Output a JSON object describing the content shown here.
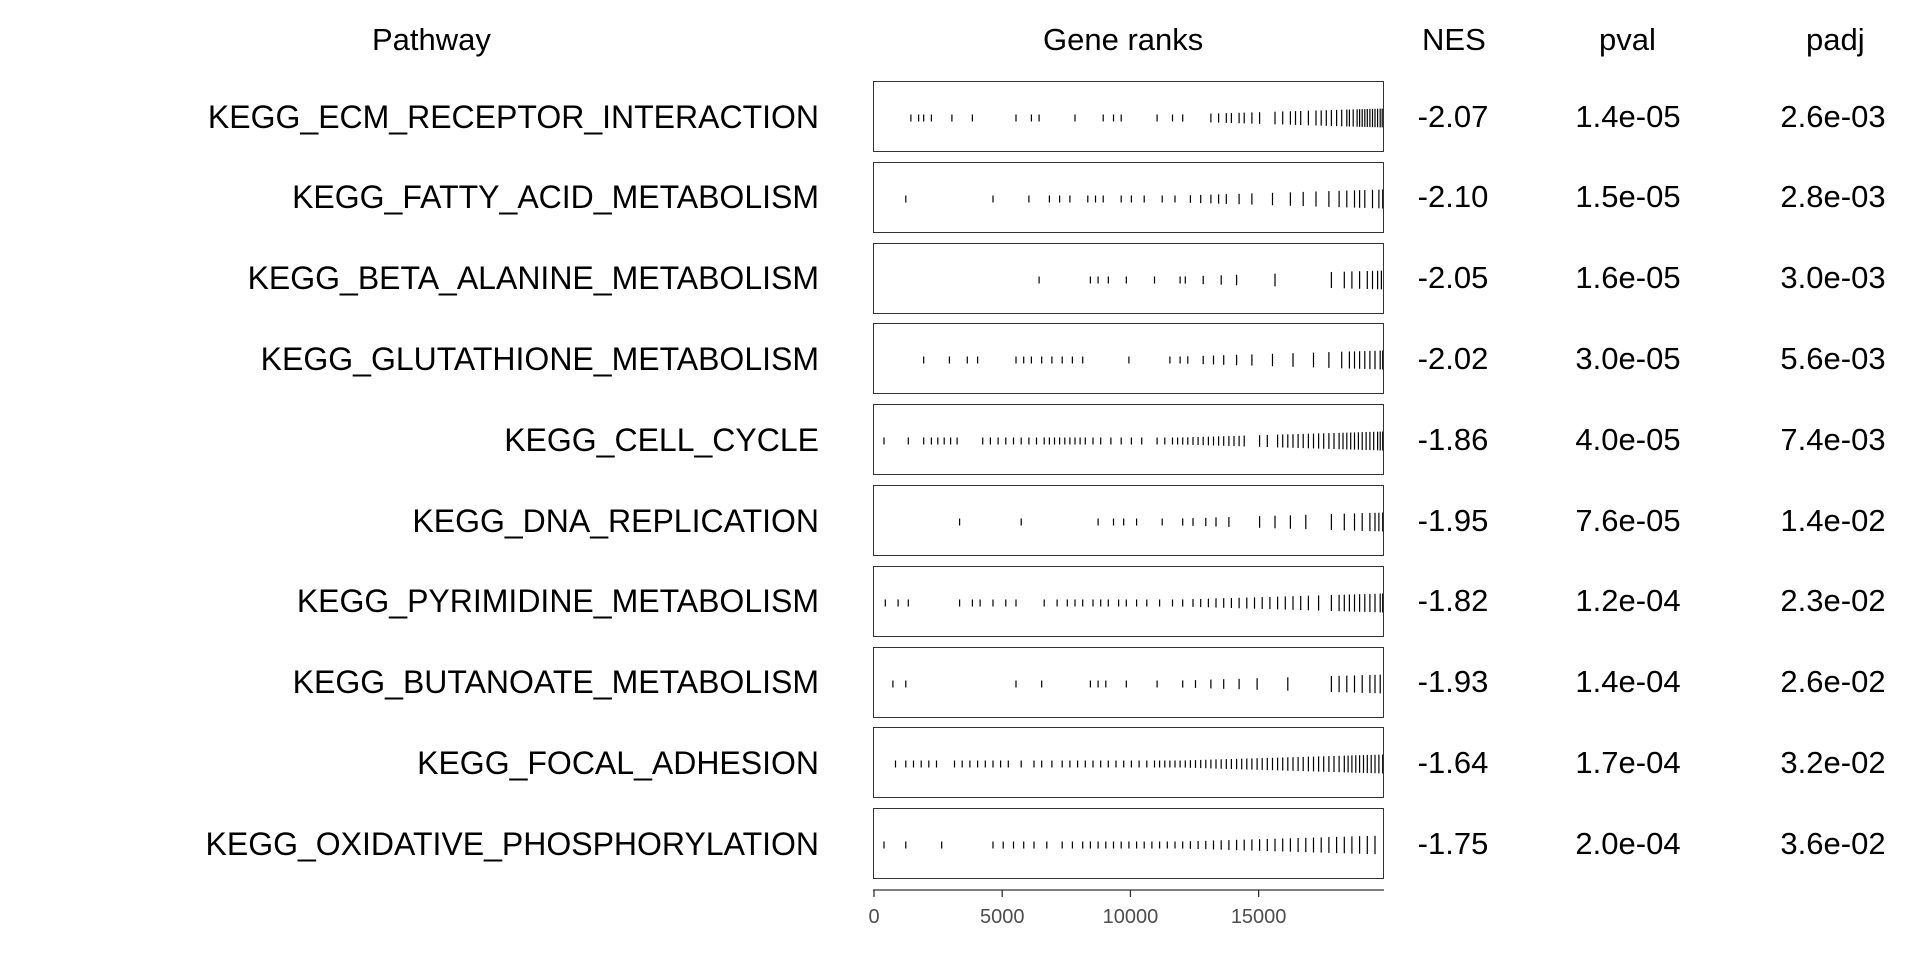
{
  "chart_data": {
    "type": "table",
    "headers": {
      "pathway": "Pathway",
      "gene_ranks": "Gene ranks",
      "nes": "NES",
      "pval": "pval",
      "padj": "padj"
    },
    "x_axis": {
      "range": [
        0,
        19850
      ],
      "ticks": [
        0,
        5000,
        10000,
        15000
      ],
      "tick_labels": [
        "0",
        "5000",
        "10000",
        "15000"
      ]
    },
    "rows": [
      {
        "pathway": "KEGG_ECM_RECEPTOR_INTERACTION",
        "nes": "-2.07",
        "pval": "1.4e-05",
        "padj": "2.6e-03",
        "ranks": [
          1400,
          1700,
          1900,
          2200,
          3000,
          3800,
          5500,
          6100,
          6400,
          7800,
          8900,
          9300,
          9600,
          11000,
          11600,
          12000,
          13100,
          13400,
          13700,
          13900,
          14200,
          14400,
          14700,
          15000,
          15600,
          15900,
          16200,
          16400,
          16600,
          16900,
          17200,
          17400,
          17600,
          17800,
          18000,
          18200,
          18400,
          18500,
          18650,
          18800,
          18900,
          19000,
          19100,
          19200,
          19300,
          19400,
          19500,
          19600,
          19700,
          19780
        ]
      },
      {
        "pathway": "KEGG_FATTY_ACID_METABOLISM",
        "nes": "-2.10",
        "pval": "1.5e-05",
        "padj": "2.8e-03",
        "ranks": [
          1200,
          4600,
          6000,
          6800,
          7200,
          7600,
          8300,
          8600,
          8900,
          9600,
          10000,
          10500,
          11200,
          11700,
          12300,
          12700,
          13100,
          13400,
          13700,
          14200,
          14700,
          15500,
          16200,
          16700,
          17200,
          17700,
          18100,
          18400,
          18700,
          18900,
          19100,
          19400,
          19650,
          19800
        ]
      },
      {
        "pathway": "KEGG_BETA_ALANINE_METABOLISM",
        "nes": "-2.05",
        "pval": "1.6e-05",
        "padj": "3.0e-03",
        "ranks": [
          6400,
          8400,
          8700,
          9100,
          9800,
          10900,
          11900,
          12100,
          12800,
          13500,
          14100,
          15600,
          17800,
          18300,
          18600,
          18900,
          19200,
          19400,
          19600,
          19750
        ]
      },
      {
        "pathway": "KEGG_GLUTATHIONE_METABOLISM",
        "nes": "-2.02",
        "pval": "3.0e-05",
        "padj": "5.6e-03",
        "ranks": [
          1900,
          2900,
          3600,
          4000,
          5500,
          5800,
          6100,
          6500,
          6900,
          7300,
          7700,
          8100,
          9900,
          11500,
          11900,
          12200,
          12800,
          13200,
          13600,
          14100,
          14700,
          15500,
          16300,
          17100,
          17700,
          18200,
          18500,
          18700,
          18900,
          19100,
          19300,
          19500,
          19700,
          19800
        ]
      },
      {
        "pathway": "KEGG_CELL_CYCLE",
        "nes": "-1.86",
        "pval": "4.0e-05",
        "padj": "7.4e-03",
        "ranks": [
          350,
          1300,
          1900,
          2200,
          2450,
          2700,
          2950,
          3200,
          4200,
          4500,
          4800,
          5100,
          5400,
          5700,
          6000,
          6300,
          6600,
          6800,
          7000,
          7200,
          7400,
          7600,
          7800,
          8000,
          8200,
          8500,
          8800,
          9200,
          9600,
          10000,
          10400,
          11000,
          11300,
          11600,
          11800,
          12000,
          12200,
          12400,
          12600,
          12800,
          13000,
          13200,
          13400,
          13600,
          13800,
          14000,
          14200,
          14400,
          15000,
          15300,
          15700,
          15900,
          16100,
          16300,
          16500,
          16700,
          16900,
          17100,
          17300,
          17500,
          17700,
          17900,
          18100,
          18250,
          18400,
          18550,
          18700,
          18850,
          19000,
          19150,
          19300,
          19450,
          19600,
          19700,
          19800
        ]
      },
      {
        "pathway": "KEGG_DNA_REPLICATION",
        "nes": "-1.95",
        "pval": "7.6e-05",
        "padj": "1.4e-02",
        "ranks": [
          3300,
          5700,
          8700,
          9300,
          9700,
          10200,
          11200,
          12000,
          12400,
          12900,
          13300,
          13800,
          15000,
          15600,
          16200,
          16800,
          17800,
          18300,
          18700,
          19000,
          19300,
          19500,
          19650,
          19800
        ]
      },
      {
        "pathway": "KEGG_PYRIMIDINE_METABOLISM",
        "nes": "-1.82",
        "pval": "1.2e-04",
        "padj": "2.3e-02",
        "ranks": [
          400,
          900,
          1300,
          3300,
          3800,
          4100,
          4600,
          5100,
          5500,
          6600,
          7100,
          7500,
          7800,
          8100,
          8500,
          8800,
          9100,
          9500,
          9800,
          10200,
          10600,
          11100,
          11600,
          12000,
          12400,
          12700,
          13000,
          13300,
          13600,
          13900,
          14200,
          14500,
          14800,
          15100,
          15400,
          15700,
          16000,
          16300,
          16600,
          16900,
          17300,
          17800,
          18100,
          18300,
          18500,
          18700,
          18900,
          19100,
          19300,
          19500,
          19700,
          19800
        ]
      },
      {
        "pathway": "KEGG_BUTANOATE_METABOLISM",
        "nes": "-1.93",
        "pval": "1.4e-04",
        "padj": "2.6e-02",
        "ranks": [
          700,
          1200,
          5500,
          6500,
          8400,
          8700,
          9000,
          9800,
          11000,
          12000,
          12500,
          13100,
          13600,
          14200,
          14900,
          16100,
          17800,
          18100,
          18400,
          18700,
          19000,
          19300,
          19500,
          19700
        ]
      },
      {
        "pathway": "KEGG_FOCAL_ADHESION",
        "nes": "-1.64",
        "pval": "1.7e-04",
        "padj": "3.2e-02",
        "ranks": [
          800,
          1200,
          1500,
          1800,
          2100,
          2400,
          3100,
          3400,
          3700,
          4000,
          4300,
          4600,
          4900,
          5200,
          5700,
          6200,
          6500,
          6900,
          7300,
          7600,
          7900,
          8200,
          8500,
          8800,
          9100,
          9400,
          9700,
          10000,
          10300,
          10600,
          10900,
          11100,
          11300,
          11500,
          11700,
          11900,
          12100,
          12300,
          12500,
          12700,
          12900,
          13100,
          13300,
          13500,
          13700,
          13900,
          14100,
          14300,
          14500,
          14700,
          14900,
          15100,
          15300,
          15500,
          15700,
          15900,
          16100,
          16300,
          16500,
          16700,
          16900,
          17100,
          17300,
          17500,
          17700,
          17900,
          18100,
          18300,
          18450,
          18600,
          18750,
          18900,
          19050,
          19200,
          19350,
          19500,
          19650,
          19800
        ]
      },
      {
        "pathway": "KEGG_OXIDATIVE_PHOSPHORYLATION",
        "nes": "-1.75",
        "pval": "2.0e-04",
        "padj": "3.6e-02",
        "ranks": [
          350,
          1200,
          2600,
          4600,
          5000,
          5400,
          5800,
          6200,
          6700,
          7300,
          7700,
          8100,
          8400,
          8700,
          9000,
          9300,
          9600,
          9900,
          10200,
          10500,
          10800,
          11100,
          11400,
          11700,
          12000,
          12300,
          12600,
          12900,
          13200,
          13500,
          13800,
          14100,
          14400,
          14700,
          15000,
          15300,
          15600,
          15900,
          16200,
          16500,
          16800,
          17100,
          17400,
          17700,
          18000,
          18300,
          18600,
          18900,
          19200,
          19500
        ]
      }
    ]
  }
}
